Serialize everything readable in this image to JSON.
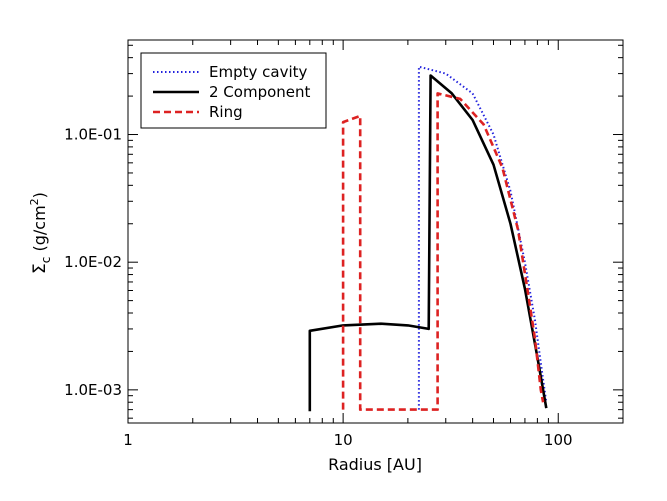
{
  "chart_data": {
    "type": "line",
    "title": "",
    "xlabel": "Radius [AU]",
    "ylabel_symbol": "Σ",
    "ylabel_subscript": "c",
    "ylabel_units_prefix": " (g/cm",
    "ylabel_units_sup": "2",
    "ylabel_units_suffix": ")",
    "xscale": "log",
    "yscale": "log",
    "xlim": [
      1,
      200
    ],
    "ylim": [
      0.00055,
      0.55
    ],
    "xticks": [
      {
        "value": 1,
        "label": "1"
      },
      {
        "value": 10,
        "label": "10"
      },
      {
        "value": 100,
        "label": "100"
      }
    ],
    "yticks": [
      {
        "value": 0.001,
        "label": "1.0E-03"
      },
      {
        "value": 0.01,
        "label": "1.0E-02"
      },
      {
        "value": 0.1,
        "label": "1.0E-01"
      }
    ],
    "legend_position": "top-left",
    "series": [
      {
        "name": "Empty cavity",
        "color": "#2222dd",
        "style": "dotted",
        "points": [
          [
            22.5,
            0.0007
          ],
          [
            22.5,
            0.34
          ],
          [
            30,
            0.3
          ],
          [
            40,
            0.21
          ],
          [
            50,
            0.1
          ],
          [
            60,
            0.036
          ],
          [
            70,
            0.01
          ],
          [
            78,
            0.0035
          ],
          [
            85,
            0.0012
          ],
          [
            88,
            0.0008
          ]
        ]
      },
      {
        "name": "2 Component",
        "color": "#000000",
        "style": "solid",
        "points": [
          [
            7,
            0.00068
          ],
          [
            7,
            0.0029
          ],
          [
            10,
            0.0032
          ],
          [
            15,
            0.0033
          ],
          [
            20,
            0.0032
          ],
          [
            25,
            0.003
          ],
          [
            25.5,
            0.29
          ],
          [
            32,
            0.21
          ],
          [
            40,
            0.13
          ],
          [
            50,
            0.058
          ],
          [
            60,
            0.02
          ],
          [
            70,
            0.0062
          ],
          [
            80,
            0.0018
          ],
          [
            88,
            0.00072
          ]
        ]
      },
      {
        "name": "Ring",
        "color": "#dd2222",
        "style": "dashed",
        "points": [
          [
            10,
            0.0007
          ],
          [
            10,
            0.125
          ],
          [
            12,
            0.14
          ],
          [
            12,
            0.0007
          ],
          [
            27.5,
            0.0007
          ],
          [
            27.5,
            0.21
          ],
          [
            35,
            0.19
          ],
          [
            45,
            0.12
          ],
          [
            55,
            0.055
          ],
          [
            65,
            0.018
          ],
          [
            72,
            0.006
          ],
          [
            78,
            0.0025
          ],
          [
            83,
            0.001
          ],
          [
            85,
            0.0008
          ]
        ]
      }
    ]
  }
}
